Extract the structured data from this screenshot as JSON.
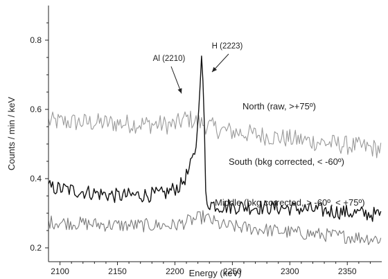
{
  "chart_data": {
    "type": "line",
    "xlabel": "Energy (keV)",
    "ylabel": "Counts / min / keV",
    "xlim": [
      2090,
      2380
    ],
    "ylim": [
      0.16,
      0.9
    ],
    "x_ticks": [
      2100,
      2150,
      2200,
      2250,
      2300,
      2350
    ],
    "y_ticks": [
      0.2,
      0.4,
      0.6,
      0.8
    ],
    "grid": false,
    "legend": "none (series labeled inline on the plot)",
    "series": [
      {
        "name": "North (raw, >+75º)",
        "color": "#9a9a9a",
        "noise": 0.028,
        "points": [
          [
            2090,
            0.565
          ],
          [
            2150,
            0.56
          ],
          [
            2200,
            0.555
          ],
          [
            2210,
            0.575
          ],
          [
            2240,
            0.54
          ],
          [
            2300,
            0.515
          ],
          [
            2380,
            0.485
          ]
        ]
      },
      {
        "name": "South (bkg corrected, < -60º)",
        "color": "#111111",
        "noise": 0.022,
        "points": [
          [
            2090,
            0.375
          ],
          [
            2150,
            0.35
          ],
          [
            2190,
            0.355
          ],
          [
            2205,
            0.38
          ],
          [
            2212,
            0.42
          ],
          [
            2218,
            0.48
          ],
          [
            2220,
            0.56
          ],
          [
            2222,
            0.68
          ],
          [
            2223,
            0.76
          ],
          [
            2225,
            0.65
          ],
          [
            2227,
            0.33
          ],
          [
            2229,
            0.33
          ],
          [
            2240,
            0.32
          ],
          [
            2300,
            0.315
          ],
          [
            2380,
            0.295
          ]
        ]
      },
      {
        "name": "Middle (bkg corrected, > -60º, < +75º)",
        "color": "#7a7a7a",
        "noise": 0.02,
        "points": [
          [
            2090,
            0.275
          ],
          [
            2150,
            0.265
          ],
          [
            2200,
            0.265
          ],
          [
            2225,
            0.29
          ],
          [
            2240,
            0.265
          ],
          [
            2300,
            0.245
          ],
          [
            2380,
            0.225
          ]
        ]
      }
    ],
    "annotations": [
      {
        "text": "Al (2210)",
        "x": 2210,
        "y": 0.565
      },
      {
        "text": "H (2223)",
        "x": 2226,
        "y": 0.66
      }
    ]
  }
}
